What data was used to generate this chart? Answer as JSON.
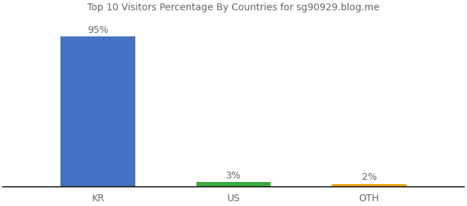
{
  "categories": [
    "KR",
    "US",
    "OTH"
  ],
  "values": [
    95,
    3,
    2
  ],
  "bar_colors": [
    "#4472c4",
    "#3daa3d",
    "#f0a820"
  ],
  "value_labels": [
    "95%",
    "3%",
    "2%"
  ],
  "title": "Top 10 Visitors Percentage By Countries for sg90929.blog.me",
  "title_fontsize": 10,
  "title_color": "#666666",
  "ylim": [
    0,
    108
  ],
  "bar_width": 0.55,
  "background_color": "#ffffff",
  "tick_label_fontsize": 10,
  "value_label_fontsize": 10,
  "label_color": "#666666",
  "x_positions": [
    1,
    2,
    3
  ]
}
